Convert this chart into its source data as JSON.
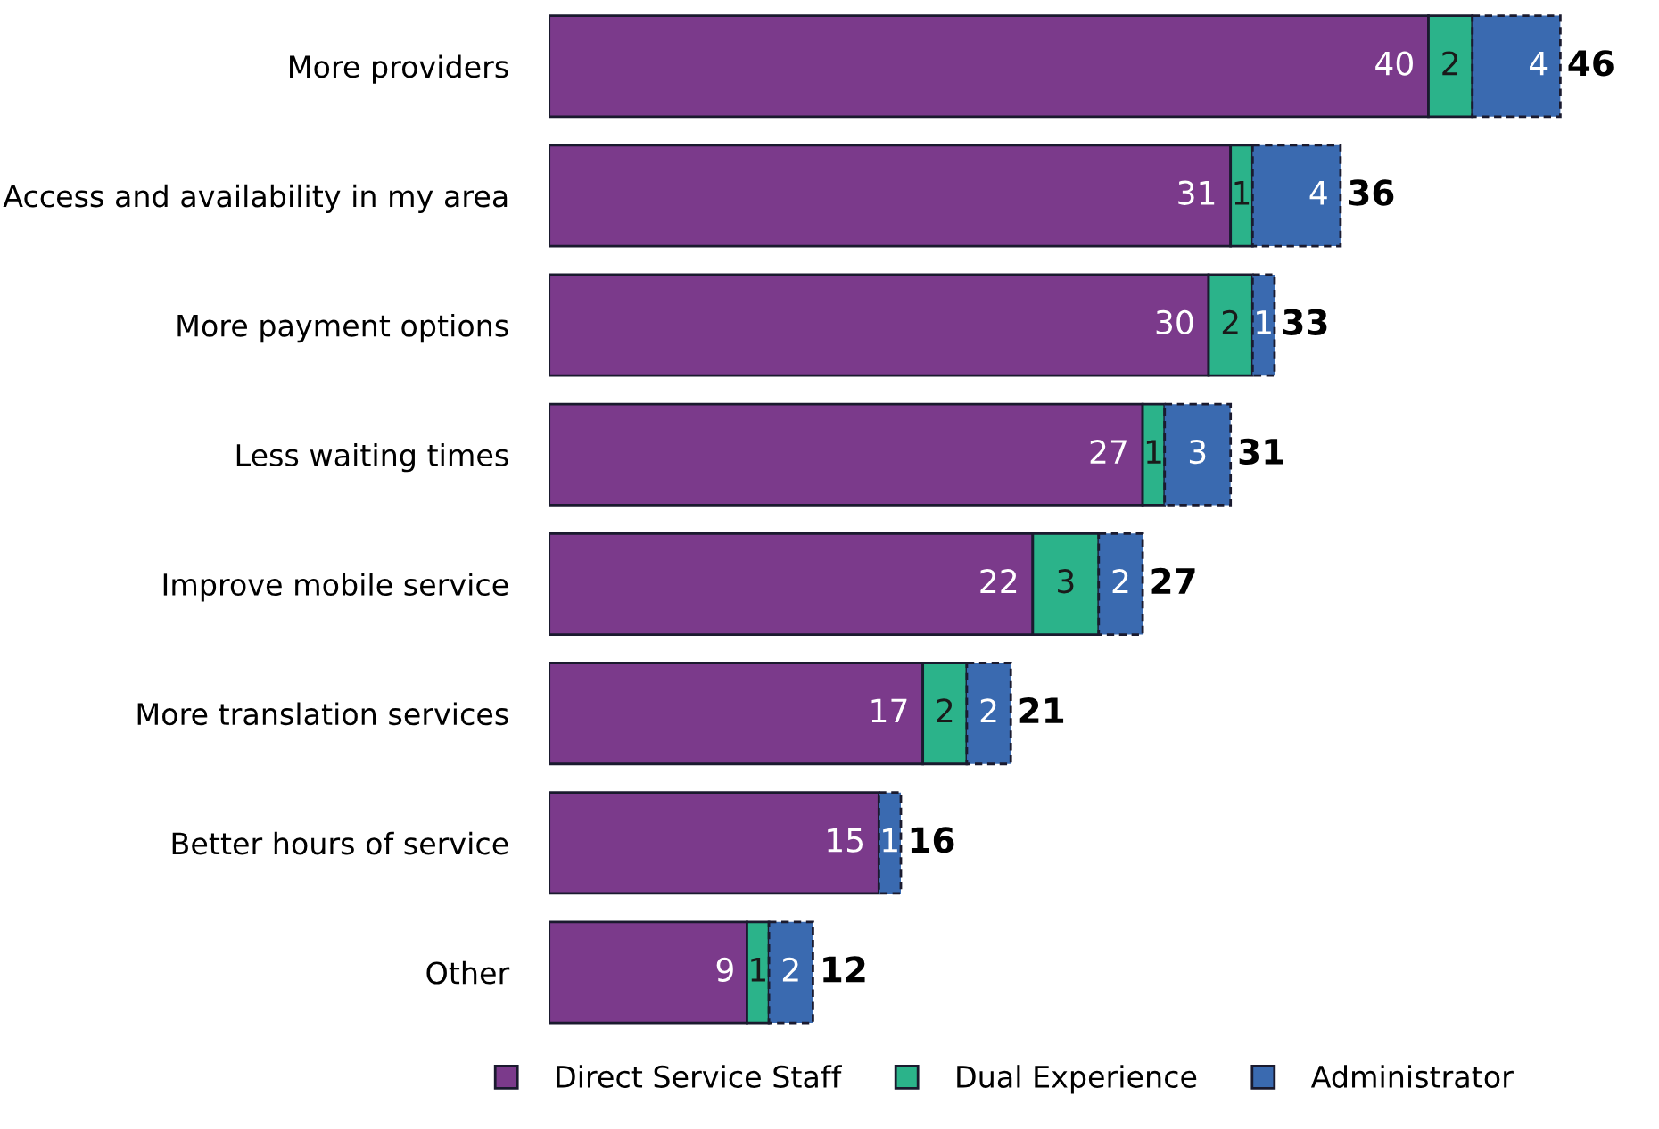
{
  "chart_data": {
    "type": "bar",
    "orientation": "horizontal",
    "stacked": true,
    "categories": [
      "More providers",
      "Access and availability in my area",
      "More payment options",
      "Less waiting times",
      "Improve mobile service",
      "More translation services",
      "Better hours of service",
      "Other"
    ],
    "series": [
      {
        "name": "Direct Service Staff",
        "color": "#7b3a8b",
        "values": [
          40,
          31,
          30,
          27,
          22,
          17,
          15,
          9
        ]
      },
      {
        "name": "Dual Experience",
        "color": "#2bb38a",
        "values": [
          2,
          1,
          2,
          1,
          3,
          2,
          null,
          1
        ]
      },
      {
        "name": "Administrator",
        "color": "#3a6ab0",
        "line_style": "dashed",
        "values": [
          4,
          4,
          1,
          3,
          2,
          2,
          1,
          2
        ]
      }
    ],
    "data_labels": true,
    "totals": [
      "46",
      "36",
      "33",
      "31",
      "27",
      "21",
      "16",
      "12"
    ],
    "legend": "bottom",
    "grid": false
  }
}
